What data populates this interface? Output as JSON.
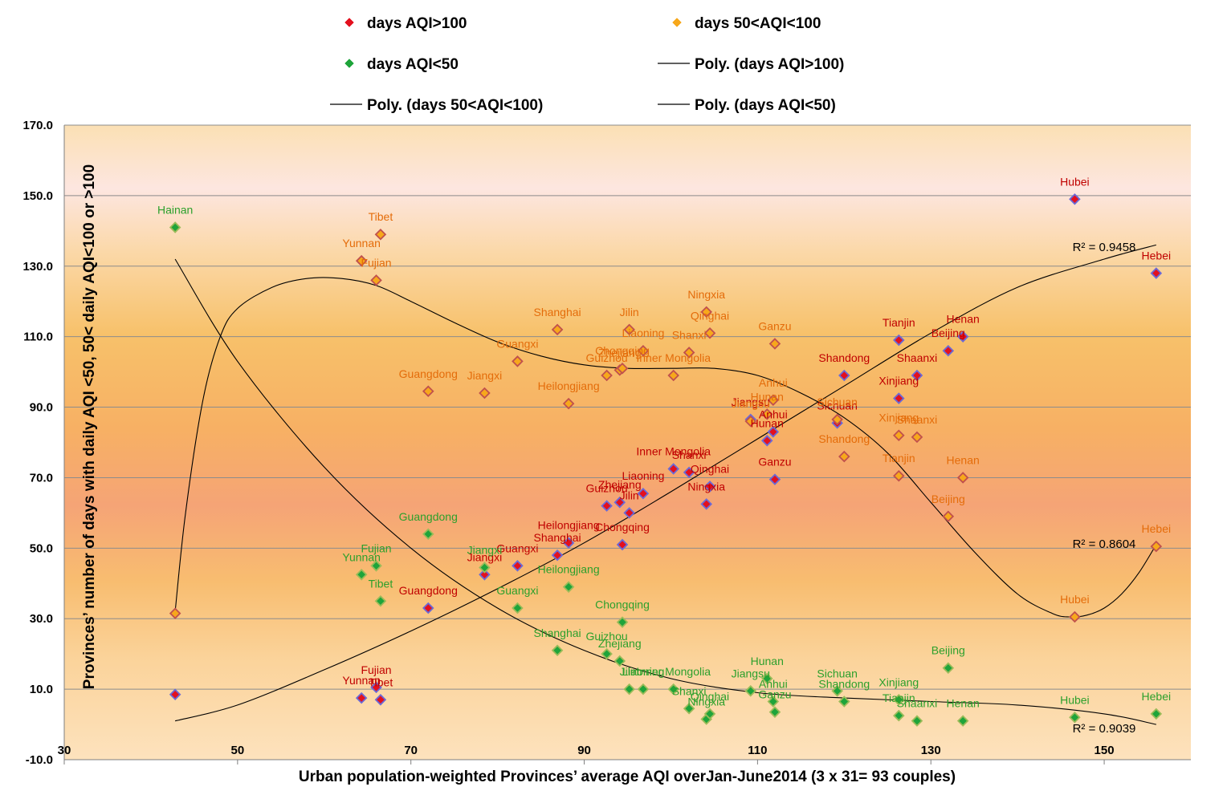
{
  "chart_data": {
    "type": "scatter",
    "title": "",
    "xlabel": "Urban population-weighted Provinces’  average AQI overJan-June2014 (3 x 31= 93 couples)",
    "ylabel": "Provinces’ number of days with daily AQI <50, 50< daily AQI<100 or >100",
    "xlim": [
      30,
      160
    ],
    "ylim": [
      -10,
      170
    ],
    "x_ticks": [
      "30",
      "50",
      "70",
      "90",
      "110",
      "130",
      "150"
    ],
    "y_ticks": [
      "-10.0",
      "10.0",
      "30.0",
      "50.0",
      "70.0",
      "90.0",
      "110.0",
      "130.0",
      "150.0",
      "170.0"
    ],
    "legend": [
      {
        "label": "days AQI>100",
        "kind": "marker",
        "color": "#e3101e"
      },
      {
        "label": "days 50<AQI<100",
        "kind": "marker",
        "color": "#f7a81b"
      },
      {
        "label": "days AQI<50",
        "kind": "marker",
        "color": "#1ea43a"
      },
      {
        "label": "Poly. (days AQI>100)",
        "kind": "line",
        "color": "#000000"
      },
      {
        "label": "Poly. (days 50<AQI<100)",
        "kind": "line",
        "color": "#000000"
      },
      {
        "label": "Poly. (days AQI<50)",
        "kind": "line",
        "color": "#000000"
      }
    ],
    "series": [
      {
        "name": "days AQI>100",
        "fill": "#e3101e",
        "edge": "#6a6ad8",
        "label_color": "#c00000",
        "points": [
          {
            "x": 42.8,
            "y": 8.5,
            "label": ""
          },
          {
            "x": 64.3,
            "y": 7.5,
            "label": "Yunnan"
          },
          {
            "x": 66.0,
            "y": 10.5,
            "label": "Fujian"
          },
          {
            "x": 66.5,
            "y": 7.0,
            "label": "Tibet"
          },
          {
            "x": 72.0,
            "y": 33.0,
            "label": "Guangdong"
          },
          {
            "x": 78.5,
            "y": 42.5,
            "label": "Jiangxi"
          },
          {
            "x": 82.3,
            "y": 45.0,
            "label": "Guangxi"
          },
          {
            "x": 86.9,
            "y": 48.0,
            "label": "Shanghai"
          },
          {
            "x": 88.2,
            "y": 51.5,
            "label": "Heilongjiang"
          },
          {
            "x": 92.6,
            "y": 62.0,
            "label": "Guizhou"
          },
          {
            "x": 94.1,
            "y": 63.0,
            "label": "Zhejiang"
          },
          {
            "x": 94.4,
            "y": 51.0,
            "label": "Chongqing"
          },
          {
            "x": 95.2,
            "y": 60.0,
            "label": "Jilin"
          },
          {
            "x": 96.8,
            "y": 65.5,
            "label": "Liaoning"
          },
          {
            "x": 100.3,
            "y": 72.5,
            "label": "Inner Mongolia"
          },
          {
            "x": 102.1,
            "y": 71.5,
            "label": "Shanxi"
          },
          {
            "x": 104.1,
            "y": 62.5,
            "label": "Ningxia"
          },
          {
            "x": 104.5,
            "y": 67.5,
            "label": "Qinghai"
          },
          {
            "x": 109.2,
            "y": 86.5,
            "label": "Jiangsu"
          },
          {
            "x": 111.1,
            "y": 80.5,
            "label": "Hunan"
          },
          {
            "x": 111.8,
            "y": 83.0,
            "label": "Anhui"
          },
          {
            "x": 112.0,
            "y": 69.5,
            "label": "Ganzu"
          },
          {
            "x": 119.2,
            "y": 85.5,
            "label": "Sichuan"
          },
          {
            "x": 120.0,
            "y": 99.0,
            "label": "Shandong"
          },
          {
            "x": 126.3,
            "y": 92.5,
            "label": "Xinjiang"
          },
          {
            "x": 126.3,
            "y": 109.0,
            "label": "Tianjin"
          },
          {
            "x": 128.4,
            "y": 99.0,
            "label": "Shaanxi"
          },
          {
            "x": 132.0,
            "y": 106.0,
            "label": "Beijing"
          },
          {
            "x": 133.7,
            "y": 110.0,
            "label": "Henan"
          },
          {
            "x": 146.6,
            "y": 149.0,
            "label": "Hubei"
          },
          {
            "x": 156.0,
            "y": 128.0,
            "label": "Hebei"
          }
        ]
      },
      {
        "name": "days 50<AQI<100",
        "fill": "#f7a81b",
        "edge": "#c0504d",
        "label_color": "#e46c0a",
        "points": [
          {
            "x": 42.8,
            "y": 31.5,
            "label": ""
          },
          {
            "x": 64.3,
            "y": 131.5,
            "label": "Yunnan"
          },
          {
            "x": 66.0,
            "y": 126.0,
            "label": "Fujian"
          },
          {
            "x": 66.5,
            "y": 139.0,
            "label": "Tibet"
          },
          {
            "x": 72.0,
            "y": 94.5,
            "label": "Guangdong"
          },
          {
            "x": 78.5,
            "y": 94.0,
            "label": "Jiangxi"
          },
          {
            "x": 82.3,
            "y": 103.0,
            "label": "Guangxi"
          },
          {
            "x": 86.9,
            "y": 112.0,
            "label": "Shanghai"
          },
          {
            "x": 88.2,
            "y": 91.0,
            "label": "Heilongjiang"
          },
          {
            "x": 92.6,
            "y": 99.0,
            "label": "Guizhou"
          },
          {
            "x": 94.1,
            "y": 100.5,
            "label": "Zhejiang"
          },
          {
            "x": 94.4,
            "y": 101.0,
            "label": "Chongqing"
          },
          {
            "x": 95.2,
            "y": 112.0,
            "label": "Jilin"
          },
          {
            "x": 96.8,
            "y": 106.0,
            "label": "Liaoning"
          },
          {
            "x": 100.3,
            "y": 99.0,
            "label": "Inner Mongolia"
          },
          {
            "x": 102.1,
            "y": 105.5,
            "label": "Shanxi"
          },
          {
            "x": 104.1,
            "y": 117.0,
            "label": "Ningxia"
          },
          {
            "x": 104.5,
            "y": 111.0,
            "label": "Qinghai"
          },
          {
            "x": 109.2,
            "y": 86.0,
            "label": "Jiangsu"
          },
          {
            "x": 111.1,
            "y": 88.0,
            "label": "Hunan"
          },
          {
            "x": 111.8,
            "y": 92.0,
            "label": "Anhui"
          },
          {
            "x": 112.0,
            "y": 108.0,
            "label": "Ganzu"
          },
          {
            "x": 119.2,
            "y": 86.5,
            "label": "Sichuan"
          },
          {
            "x": 120.0,
            "y": 76.0,
            "label": "Shandong"
          },
          {
            "x": 126.3,
            "y": 82.0,
            "label": "Xinjiang"
          },
          {
            "x": 126.3,
            "y": 70.5,
            "label": "Tianjin"
          },
          {
            "x": 128.4,
            "y": 81.5,
            "label": "Shaanxi"
          },
          {
            "x": 132.0,
            "y": 59.0,
            "label": "Beijing"
          },
          {
            "x": 133.7,
            "y": 70.0,
            "label": "Henan"
          },
          {
            "x": 146.6,
            "y": 30.5,
            "label": "Hubei"
          },
          {
            "x": 156.0,
            "y": 50.5,
            "label": "Hebei"
          }
        ]
      },
      {
        "name": "days AQI<50",
        "fill": "#1ea43a",
        "edge": "#9bbb59",
        "label_color": "#2ca02c",
        "points": [
          {
            "x": 42.8,
            "y": 141.0,
            "label": "Hainan"
          },
          {
            "x": 64.3,
            "y": 42.5,
            "label": "Yunnan"
          },
          {
            "x": 66.0,
            "y": 45.0,
            "label": "Fujian"
          },
          {
            "x": 66.5,
            "y": 35.0,
            "label": "Tibet"
          },
          {
            "x": 72.0,
            "y": 54.0,
            "label": "Guangdong"
          },
          {
            "x": 78.5,
            "y": 44.5,
            "label": "Jiangxi"
          },
          {
            "x": 82.3,
            "y": 33.0,
            "label": "Guangxi"
          },
          {
            "x": 86.9,
            "y": 21.0,
            "label": "Shanghai"
          },
          {
            "x": 88.2,
            "y": 39.0,
            "label": "Heilongjiang"
          },
          {
            "x": 92.6,
            "y": 20.0,
            "label": "Guizhou"
          },
          {
            "x": 94.1,
            "y": 18.0,
            "label": "Zhejiang"
          },
          {
            "x": 94.4,
            "y": 29.0,
            "label": "Chongqing"
          },
          {
            "x": 95.2,
            "y": 10.0,
            "label": "Jilin"
          },
          {
            "x": 96.8,
            "y": 10.0,
            "label": "Liaoning"
          },
          {
            "x": 100.3,
            "y": 10.0,
            "label": "Inner Mongolia"
          },
          {
            "x": 102.1,
            "y": 4.5,
            "label": "Shanxi"
          },
          {
            "x": 104.1,
            "y": 1.5,
            "label": "Ningxia"
          },
          {
            "x": 104.5,
            "y": 3.0,
            "label": "Qinghai"
          },
          {
            "x": 109.2,
            "y": 9.5,
            "label": "Jiangsu"
          },
          {
            "x": 111.1,
            "y": 13.0,
            "label": "Hunan"
          },
          {
            "x": 111.8,
            "y": 6.5,
            "label": "Anhui"
          },
          {
            "x": 112.0,
            "y": 3.5,
            "label": "Ganzu"
          },
          {
            "x": 119.2,
            "y": 9.5,
            "label": "Sichuan"
          },
          {
            "x": 120.0,
            "y": 6.5,
            "label": "Shandong"
          },
          {
            "x": 126.3,
            "y": 2.5,
            "label": "Tianjin"
          },
          {
            "x": 126.3,
            "y": 7.0,
            "label": "Xinjiang"
          },
          {
            "x": 128.4,
            "y": 1.0,
            "label": "Shaanxi"
          },
          {
            "x": 132.0,
            "y": 16.0,
            "label": "Beijing"
          },
          {
            "x": 133.7,
            "y": 1.0,
            "label": "Henan"
          },
          {
            "x": 146.6,
            "y": 2.0,
            "label": "Hubei"
          },
          {
            "x": 156.0,
            "y": 3.0,
            "label": "Hebei"
          }
        ]
      }
    ],
    "trendlines": [
      {
        "name": "Poly. (days AQI>100)",
        "r2_text": "R² = 0.9458",
        "curve": [
          [
            42.8,
            1
          ],
          [
            50,
            5.5
          ],
          [
            60,
            15.5
          ],
          [
            70,
            26.5
          ],
          [
            80,
            38.5
          ],
          [
            90,
            51.5
          ],
          [
            100,
            66
          ],
          [
            110,
            81
          ],
          [
            120,
            96
          ],
          [
            130,
            111
          ],
          [
            140,
            124
          ],
          [
            150,
            132
          ],
          [
            156,
            136
          ]
        ]
      },
      {
        "name": "Poly. (days 50<AQI<100)",
        "r2_text": "R² = 0.8604",
        "curve": [
          [
            42.8,
            32
          ],
          [
            44,
            60
          ],
          [
            46,
            92
          ],
          [
            48,
            110
          ],
          [
            50,
            118
          ],
          [
            54,
            124
          ],
          [
            58,
            126.5
          ],
          [
            62,
            126.5
          ],
          [
            66,
            124.5
          ],
          [
            70,
            120
          ],
          [
            75,
            114
          ],
          [
            80,
            108.5
          ],
          [
            85,
            104.5
          ],
          [
            90,
            102
          ],
          [
            95,
            101
          ],
          [
            100,
            101
          ],
          [
            105,
            101
          ],
          [
            110,
            99
          ],
          [
            115,
            94
          ],
          [
            120,
            87
          ],
          [
            125,
            77
          ],
          [
            130,
            63
          ],
          [
            135,
            49
          ],
          [
            140,
            37
          ],
          [
            144,
            31.5
          ],
          [
            146,
            30.5
          ],
          [
            148,
            31
          ],
          [
            150,
            33
          ],
          [
            152,
            37
          ],
          [
            154,
            43
          ],
          [
            156,
            51
          ]
        ]
      },
      {
        "name": "Poly. (days AQI<50)",
        "r2_text": "R² = 0.9039",
        "curve": [
          [
            42.8,
            132
          ],
          [
            50,
            103
          ],
          [
            60,
            73
          ],
          [
            70,
            50
          ],
          [
            80,
            33
          ],
          [
            90,
            21
          ],
          [
            100,
            13
          ],
          [
            110,
            9
          ],
          [
            120,
            7.5
          ],
          [
            130,
            6.5
          ],
          [
            140,
            5.5
          ],
          [
            150,
            3
          ],
          [
            156,
            0
          ]
        ]
      }
    ]
  }
}
